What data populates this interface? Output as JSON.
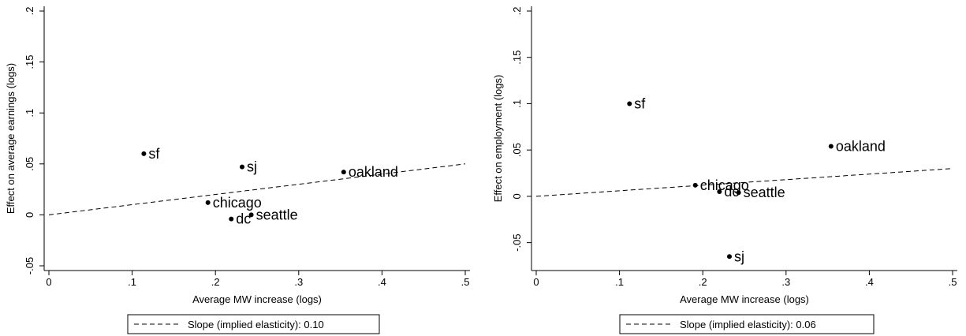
{
  "chart_data": [
    {
      "type": "scatter",
      "xlabel": "Average MW increase (logs)",
      "ylabel": "Effect on average earnings (logs)",
      "xlim": [
        0,
        0.5
      ],
      "ylim": [
        -0.05,
        0.2
      ],
      "xticks": [
        0,
        0.1,
        0.2,
        0.3,
        0.4,
        0.5
      ],
      "xtick_labels": [
        "0",
        ".1",
        ".2",
        ".3",
        ".4",
        ".5"
      ],
      "yticks": [
        -0.05,
        0,
        0.05,
        0.1,
        0.15,
        0.2
      ],
      "ytick_labels": [
        "-.05",
        "0",
        ".05",
        ".1",
        ".15",
        ".2"
      ],
      "grid": false,
      "points": [
        {
          "label": "sf",
          "x": 0.114,
          "y": 0.06
        },
        {
          "label": "sj",
          "x": 0.232,
          "y": 0.047
        },
        {
          "label": "oakland",
          "x": 0.354,
          "y": 0.042
        },
        {
          "label": "chicago",
          "x": 0.191,
          "y": 0.012
        },
        {
          "label": "seattle",
          "x": 0.243,
          "y": 0.0
        },
        {
          "label": "dc",
          "x": 0.219,
          "y": -0.004
        }
      ],
      "fit_line": {
        "slope": 0.1,
        "intercept": 0,
        "style": "dashed"
      },
      "legend": {
        "position": "bottom",
        "label": "Slope (implied elasticity): 0.10"
      }
    },
    {
      "type": "scatter",
      "xlabel": "Average MW increase (logs)",
      "ylabel": "Effect on employment (logs)",
      "xlim": [
        0,
        0.5
      ],
      "ylim": [
        -0.075,
        0.2
      ],
      "xticks": [
        0,
        0.1,
        0.2,
        0.3,
        0.4,
        0.5
      ],
      "xtick_labels": [
        "0",
        ".1",
        ".2",
        ".3",
        ".4",
        ".5"
      ],
      "yticks": [
        -0.05,
        0,
        0.05,
        0.1,
        0.15,
        0.2
      ],
      "ytick_labels": [
        "-.05",
        "0",
        ".05",
        ".1",
        ".15",
        ".2"
      ],
      "grid": false,
      "points": [
        {
          "label": "sf",
          "x": 0.112,
          "y": 0.1
        },
        {
          "label": "oakland",
          "x": 0.354,
          "y": 0.054
        },
        {
          "label": "chicago",
          "x": 0.191,
          "y": 0.012
        },
        {
          "label": "dc",
          "x": 0.22,
          "y": 0.005
        },
        {
          "label": "seattle",
          "x": 0.243,
          "y": 0.004
        },
        {
          "label": "sj",
          "x": 0.232,
          "y": -0.065
        }
      ],
      "fit_line": {
        "slope": 0.06,
        "intercept": 0,
        "style": "dashed"
      },
      "legend": {
        "position": "bottom",
        "label": "Slope (implied elasticity): 0.06"
      }
    }
  ]
}
